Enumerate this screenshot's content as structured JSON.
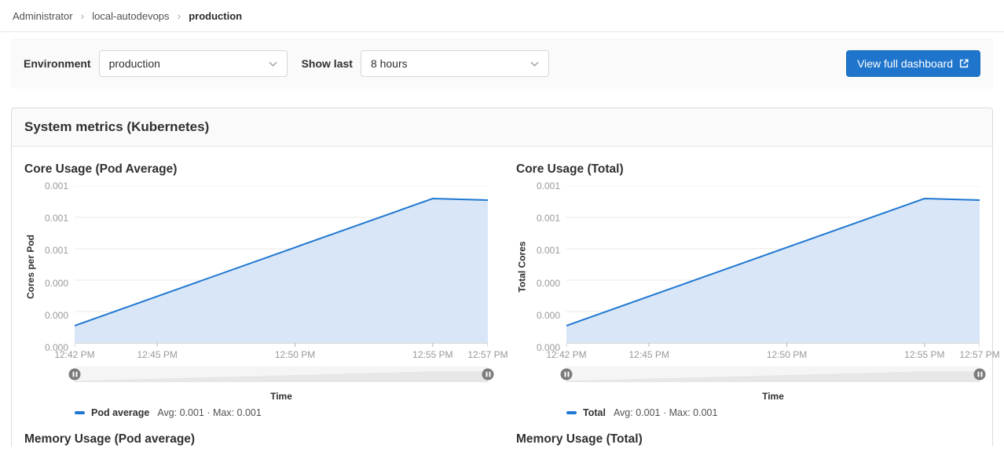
{
  "breadcrumb": {
    "separator": "›",
    "items": [
      {
        "label": "Administrator"
      },
      {
        "label": "local-autodevops"
      },
      {
        "label": "production"
      }
    ]
  },
  "filters": {
    "environment_label": "Environment",
    "environment_value": "production",
    "show_last_label": "Show last",
    "show_last_value": "8 hours",
    "view_dashboard_button": "View full dashboard"
  },
  "panel": {
    "title": "System metrics (Kubernetes)"
  },
  "colors": {
    "accent": "#1f75cb",
    "line": "#1f78d1",
    "area_fill": "#d9e6f7",
    "grid": "#e8e8e8",
    "axis": "#b5b5b5",
    "tick_text": "#999999",
    "slider_shape": "#e7e7e7"
  },
  "next_row": {
    "left_title": "Memory Usage (Pod average)",
    "right_title": "Memory Usage (Total)"
  },
  "chart_data": [
    {
      "type": "area",
      "title": "Core Usage (Pod Average)",
      "xlabel": "Time",
      "ylabel": "Cores per Pod",
      "ylim": [
        0,
        0.001
      ],
      "grid": "horizontal",
      "legend_position": "bottom",
      "x_ticks": [
        "12:42 PM",
        "12:45 PM",
        "12:50 PM",
        "12:55 PM",
        "12:57 PM"
      ],
      "x_tick_minutes": [
        0,
        3,
        8,
        13,
        15
      ],
      "y_tick_labels": [
        "0.001",
        "0.001",
        "0.001",
        "0.000",
        "0.000",
        "0.000"
      ],
      "series": [
        {
          "name": "Pod average",
          "stats": "Avg: 0.001 · Max: 0.001",
          "points": [
            {
              "t": 0,
              "v": 0.00011
            },
            {
              "t": 13,
              "v": 0.00092
            },
            {
              "t": 14,
              "v": 0.000915
            },
            {
              "t": 15,
              "v": 0.00091
            }
          ]
        }
      ]
    },
    {
      "type": "area",
      "title": "Core Usage (Total)",
      "xlabel": "Time",
      "ylabel": "Total Cores",
      "ylim": [
        0,
        0.001
      ],
      "grid": "horizontal",
      "legend_position": "bottom",
      "x_ticks": [
        "12:42 PM",
        "12:45 PM",
        "12:50 PM",
        "12:55 PM",
        "12:57 PM"
      ],
      "x_tick_minutes": [
        0,
        3,
        8,
        13,
        15
      ],
      "y_tick_labels": [
        "0.001",
        "0.001",
        "0.001",
        "0.000",
        "0.000",
        "0.000"
      ],
      "series": [
        {
          "name": "Total",
          "stats": "Avg: 0.001 · Max: 0.001",
          "points": [
            {
              "t": 0,
              "v": 0.00011
            },
            {
              "t": 13,
              "v": 0.00092
            },
            {
              "t": 14,
              "v": 0.000915
            },
            {
              "t": 15,
              "v": 0.00091
            }
          ]
        }
      ]
    }
  ]
}
